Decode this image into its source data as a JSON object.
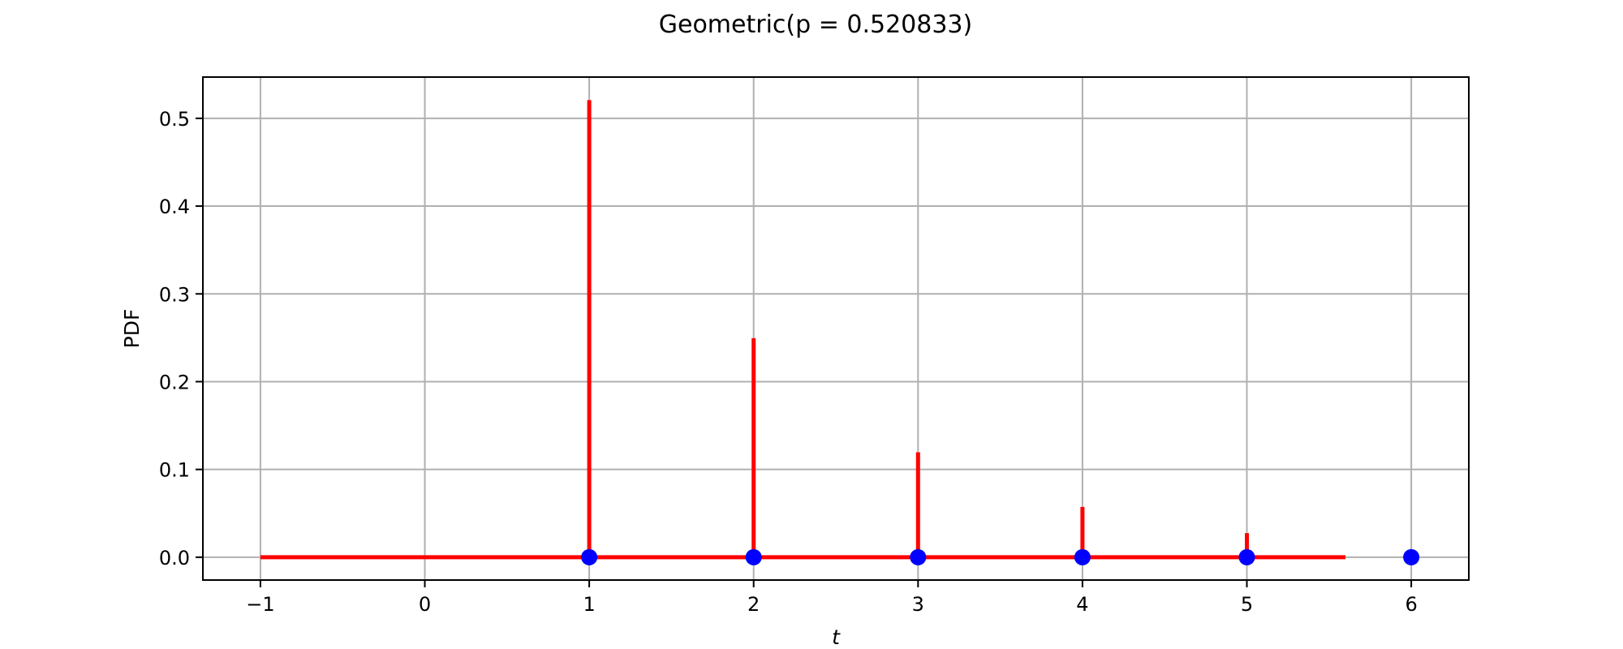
{
  "chart_data": {
    "type": "line",
    "title": "Geometric(p = 0.520833)",
    "xlabel": "t",
    "ylabel": "PDF",
    "xlim": [
      -1.35,
      6.35
    ],
    "ylim": [
      -0.026,
      0.547
    ],
    "x_ticks": [
      -1,
      0,
      1,
      2,
      3,
      4,
      5,
      6
    ],
    "x_tick_labels": [
      "−1",
      "0",
      "1",
      "2",
      "3",
      "4",
      "5",
      "6"
    ],
    "y_ticks": [
      0.0,
      0.1,
      0.2,
      0.3,
      0.4,
      0.5
    ],
    "y_tick_labels": [
      "0.0",
      "0.1",
      "0.2",
      "0.3",
      "0.4",
      "0.5"
    ],
    "grid": true,
    "series": [
      {
        "kind": "stems",
        "color": "#ff0000",
        "x": [
          1,
          2,
          3,
          4,
          5
        ],
        "y": [
          0.520833,
          0.249566,
          0.119584,
          0.057301,
          0.027457
        ]
      },
      {
        "kind": "baseline",
        "color": "#ff0000",
        "x": [
          -1,
          5.6
        ],
        "y": [
          0,
          0
        ]
      },
      {
        "kind": "points",
        "color": "#0000ff",
        "x": [
          1,
          2,
          3,
          4,
          5,
          6
        ],
        "y": [
          0,
          0,
          0,
          0,
          0,
          0
        ]
      }
    ]
  }
}
